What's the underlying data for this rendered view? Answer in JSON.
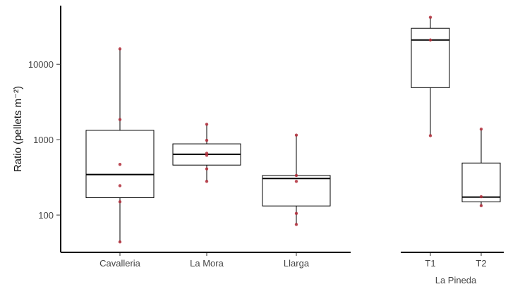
{
  "chart_data": {
    "type": "boxplot",
    "y_scale": "log",
    "ylabel": "Ratio (pellets m⁻²)",
    "yticks": [
      100,
      1000,
      10000
    ],
    "ytick_labels": [
      "100",
      "1000",
      "10000"
    ],
    "ylim": [
      32,
      60000
    ],
    "grid": false,
    "legend": "none",
    "colors": {
      "box": "#000000",
      "median": "#000000",
      "point": "#b02a37",
      "axis": "#000000"
    },
    "panels": [
      {
        "name": "",
        "categories": [
          "Cavalleria",
          "La Mora",
          "Llarga"
        ],
        "boxes": [
          {
            "category": "Cavalleria",
            "min": 44,
            "q1": 170,
            "median": 345,
            "q3": 1330,
            "max": 16000,
            "points": [
              44,
              150,
              245,
              470,
              1850,
              16000
            ]
          },
          {
            "category": "La Mora",
            "min": 280,
            "q1": 460,
            "median": 640,
            "q3": 880,
            "max": 1600,
            "points": [
              280,
              410,
              620,
              660,
              980,
              1600
            ]
          },
          {
            "category": "Llarga",
            "min": 75,
            "q1": 132,
            "median": 305,
            "q3": 335,
            "max": 1150,
            "points": [
              75,
              105,
              280,
              335,
              1150
            ]
          }
        ]
      },
      {
        "name": "La Pineda",
        "categories": [
          "T1",
          "T2"
        ],
        "boxes": [
          {
            "category": "T1",
            "min": 1130,
            "q1": 4900,
            "median": 21000,
            "q3": 30000,
            "max": 42000,
            "points": [
              1130,
              21000,
              42000
            ]
          },
          {
            "category": "T2",
            "min": 133,
            "q1": 150,
            "median": 173,
            "q3": 490,
            "max": 1380,
            "points": [
              133,
              175,
              1380
            ]
          }
        ]
      }
    ]
  }
}
